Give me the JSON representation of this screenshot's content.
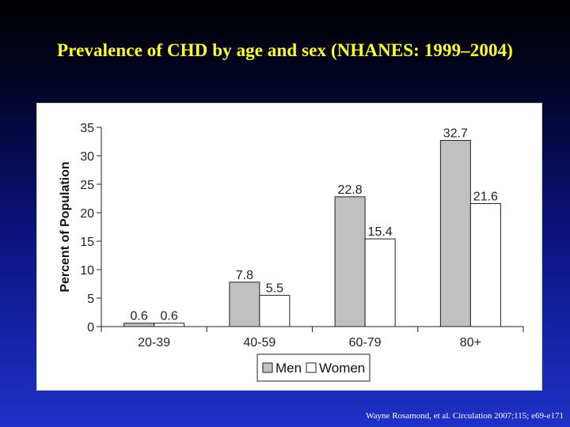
{
  "slide": {
    "title": "Prevalence of CHD by age and sex (NHANES: 1999–2004)",
    "citation": "Wayne Rosamond, et al. Circulation  2007;115; e69-e171"
  },
  "colors": {
    "men_bar": "#c0c0c0",
    "women_bar": "#ffffff",
    "title_text": "#ffff33"
  },
  "chart_data": {
    "type": "bar",
    "title": "",
    "xlabel": "",
    "ylabel": "Percent of Population",
    "categories": [
      "20-39",
      "40-59",
      "60-79",
      "80+"
    ],
    "series": [
      {
        "name": "Men",
        "values": [
          0.6,
          7.8,
          22.8,
          32.7
        ],
        "labels": [
          "0.6",
          "7.8",
          "22.8",
          "32.7"
        ]
      },
      {
        "name": "Women",
        "values": [
          0.6,
          5.5,
          15.4,
          21.6
        ],
        "labels": [
          "0.6",
          "5.5",
          "15.4",
          "21.6"
        ]
      }
    ],
    "ylim": [
      0,
      35
    ],
    "yticks": [
      0,
      5,
      10,
      15,
      20,
      25,
      30,
      35
    ],
    "grid": false,
    "legend": "bottom-center"
  }
}
